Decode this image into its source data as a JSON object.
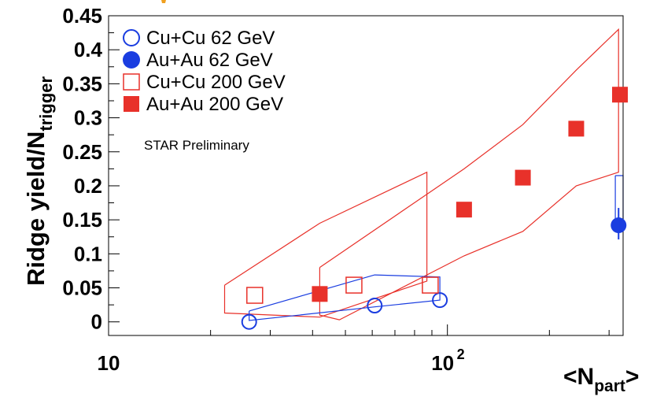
{
  "chart_data": {
    "type": "scatter",
    "xscale": "log",
    "xlim": [
      10,
      330
    ],
    "ylim": [
      -0.02,
      0.45
    ],
    "xticks": [
      {
        "value": 10,
        "label": "10"
      },
      {
        "value": 100,
        "label": "10",
        "sup": "2"
      }
    ],
    "yticks": [
      {
        "value": 0,
        "label": "0"
      },
      {
        "value": 0.05,
        "label": "0.05"
      },
      {
        "value": 0.1,
        "label": "0.1"
      },
      {
        "value": 0.15,
        "label": "0.15"
      },
      {
        "value": 0.2,
        "label": "0.2"
      },
      {
        "value": 0.25,
        "label": "0.25"
      },
      {
        "value": 0.3,
        "label": "0.3"
      },
      {
        "value": 0.35,
        "label": "0.35"
      },
      {
        "value": 0.4,
        "label": "0.4"
      },
      {
        "value": 0.45,
        "label": "0.45"
      }
    ],
    "xlabel": {
      "main": "<N",
      "sub": "part",
      "end": ">"
    },
    "ylabel": {
      "main": "Ridge yield/N",
      "sub": "trigger"
    },
    "annotation": "STAR Preliminary",
    "series": [
      {
        "name": "Cu+Cu 62 GeV",
        "marker": "open-circle",
        "color": "#1a3de0",
        "points": [
          {
            "x": 26,
            "y": 0.0
          },
          {
            "x": 61,
            "y": 0.024
          },
          {
            "x": 95,
            "y": 0.032
          }
        ]
      },
      {
        "name": "Au+Au 62 GeV",
        "marker": "filled-circle",
        "color": "#1a3de0",
        "points": [
          {
            "x": 320,
            "y": 0.142
          }
        ]
      },
      {
        "name": "Cu+Cu 200 GeV",
        "marker": "open-square",
        "color": "#e8312a",
        "points": [
          {
            "x": 27,
            "y": 0.039
          },
          {
            "x": 53,
            "y": 0.054
          },
          {
            "x": 89,
            "y": 0.054
          }
        ]
      },
      {
        "name": "Au+Au 200 GeV",
        "marker": "filled-square",
        "color": "#e8312a",
        "points": [
          {
            "x": 42,
            "y": 0.041
          },
          {
            "x": 112,
            "y": 0.165
          },
          {
            "x": 167,
            "y": 0.212
          },
          {
            "x": 240,
            "y": 0.284
          },
          {
            "x": 323,
            "y": 0.334
          }
        ]
      }
    ],
    "error_bands": [
      {
        "color": "#e8312a",
        "outline": [
          [
            22,
            0.054
          ],
          [
            42,
            0.145
          ],
          [
            87,
            0.22
          ],
          [
            87,
            0.06
          ],
          [
            42,
            0.007
          ],
          [
            22,
            0.013
          ],
          [
            22,
            0.054
          ]
        ]
      },
      {
        "color": "#e8312a",
        "outline": [
          [
            42,
            0.08
          ],
          [
            112,
            0.225
          ],
          [
            167,
            0.29
          ],
          [
            240,
            0.37
          ],
          [
            320,
            0.43
          ],
          [
            320,
            0.22
          ],
          [
            240,
            0.2
          ],
          [
            167,
            0.133
          ],
          [
            112,
            0.097
          ],
          [
            48,
            0.003
          ],
          [
            42,
            0.01
          ],
          [
            42,
            0.08
          ]
        ]
      },
      {
        "color": "#1a3de0",
        "outline": [
          [
            26,
            0.016
          ],
          [
            61,
            0.069
          ],
          [
            95,
            0.066
          ],
          [
            95,
            0.032
          ],
          [
            61,
            0.022
          ],
          [
            26,
            0.002
          ],
          [
            26,
            0.016
          ]
        ]
      },
      {
        "color": "#1a3de0",
        "outline": [
          [
            313,
            0.215
          ],
          [
            330,
            0.215
          ],
          [
            330,
            0.135
          ],
          [
            313,
            0.135
          ],
          [
            313,
            0.215
          ]
        ]
      }
    ]
  }
}
